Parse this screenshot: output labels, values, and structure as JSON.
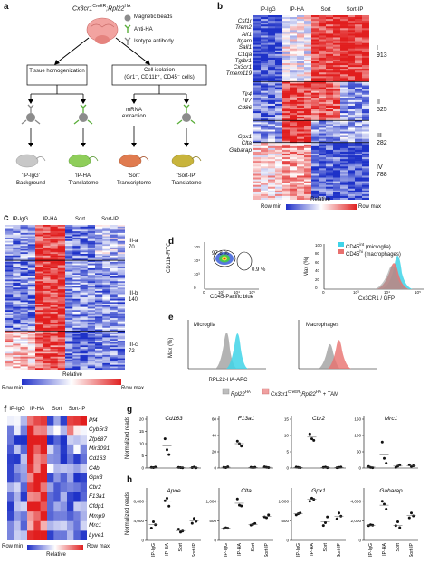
{
  "panel_labels": {
    "a": "a",
    "b": "b",
    "c": "c",
    "d": "d",
    "e": "e",
    "f": "f",
    "g": "g",
    "h": "h"
  },
  "panel_a": {
    "mouse_label": "Cx3cr1",
    "mouse_sup1": "CreER",
    "mouse_mid": ";Rpl22",
    "mouse_sup2": "HA",
    "legend": [
      "Magnetic beads",
      "Anti-HA",
      "Isotype antibody"
    ],
    "box_left": "Tissue homogenization",
    "box_right_line1": "Cell isolation",
    "box_right_line2": "(Gr1⁻, CD11b⁺, CD45⁻ cells)",
    "mrna": "mRNA extraction",
    "outputs": [
      {
        "name": "'IP-IgG'",
        "desc": "Background"
      },
      {
        "name": "'IP-HA'",
        "desc": "Translatome"
      },
      {
        "name": "'Sort'",
        "desc": "Transcriptome"
      },
      {
        "name": "'Sort-IP'",
        "desc": "Translatome"
      }
    ],
    "colors": {
      "gray": "#b9b9b9",
      "green": "#8fce5a",
      "orange": "#e07b4f",
      "olive": "#c8b43c"
    }
  },
  "panel_b": {
    "columns": [
      "IP-IgG",
      "IP-HA",
      "Sort",
      "Sort-IP"
    ],
    "genes_I": [
      "Csf1r",
      "Trem2",
      "Aif1",
      "Itgam",
      "Sall1",
      "C1qa",
      "Tgfbr1",
      "Cx3cr1",
      "Tmem119"
    ],
    "genes_II": [
      "Tlr4",
      "Tlr7",
      "Cd86"
    ],
    "genes_III": [
      "Gpx1",
      "Clta",
      "Gabarap"
    ],
    "clusters": [
      {
        "id": "I",
        "count": "913"
      },
      {
        "id": "II",
        "count": "525"
      },
      {
        "id": "III",
        "count": "282"
      },
      {
        "id": "IV",
        "count": "788"
      }
    ],
    "scale_left": "Row min",
    "scale_mid": "Relative",
    "scale_right": "Row max"
  },
  "panel_c": {
    "columns": [
      "IP-IgG",
      "IP-HA",
      "Sort",
      "Sort-IP"
    ],
    "clusters": [
      {
        "id": "III-a",
        "count": "70"
      },
      {
        "id": "III-b",
        "count": "140"
      },
      {
        "id": "III-c",
        "count": "72"
      }
    ],
    "scale_left": "Row min",
    "scale_mid": "Relative",
    "scale_right": "Row max"
  },
  "panel_d": {
    "scatter_ylabel": "CD11b-FITC",
    "scatter_xlabel": "CD45-Pacific blue",
    "gate1": "97.8 %",
    "gate2": "0.9 %",
    "hist_ylabel": "Max (%)",
    "hist_xlabel": "Cx3CR1 / GFP",
    "legend_1": "CD45",
    "legend_1_sup": "int",
    "legend_1_tail": " (microglia)",
    "legend_2": "CD45",
    "legend_2_sup": "hi",
    "legend_2_tail": " (macrophages)",
    "ticks": [
      "10²",
      "10³",
      "10⁴",
      "10⁵"
    ],
    "yticks": [
      "0",
      "10³",
      "10⁴",
      "10⁵"
    ],
    "pct_ticks": [
      "0",
      "20",
      "40",
      "60",
      "80",
      "100"
    ],
    "colors": {
      "cyan": "#3fd3e8",
      "red": "#e8706e",
      "gray": "#9a9a9a"
    }
  },
  "panel_e": {
    "left_title": "Microglia",
    "right_title": "Macrophages",
    "ylabel": "Max (%)",
    "xlabel": "RPL22-HA-APC",
    "legend_gray": "Rpl22",
    "legend_gray_sup": "HA",
    "legend_red_a": "Cx3cr1",
    "legend_red_sup1": "CreER",
    "legend_red_b": ";Rpl22",
    "legend_red_sup2": "HA",
    "legend_red_c": " + TAM"
  },
  "panel_f": {
    "columns": [
      "IP-IgG",
      "IP-HA",
      "Sort",
      "Sort-IP"
    ],
    "genes": [
      "Pf4",
      "Cyb5r3",
      "Zfp687",
      "Mir3091",
      "Cd163",
      "C4b",
      "Gpx3",
      "Cbr2",
      "F13a1",
      "Cfdp1",
      "Mmp9",
      "Mrc1",
      "Lyve1"
    ],
    "scale_left": "Row min",
    "scale_mid": "Relative",
    "scale_right": "Row max"
  },
  "panel_g": {
    "ylabel": "Normalized reads",
    "charts": [
      {
        "gene": "Cd163",
        "yticks": [
          "0",
          "5",
          "10",
          "15",
          "20"
        ]
      },
      {
        "gene": "F13a1",
        "yticks": [
          "0",
          "20",
          "40",
          "60"
        ]
      },
      {
        "gene": "Cbr2",
        "yticks": [
          "0",
          "5",
          "10",
          "15"
        ]
      },
      {
        "gene": "Mrc1",
        "yticks": [
          "0",
          "50",
          "100",
          "150"
        ]
      }
    ]
  },
  "panel_h": {
    "ylabel": "Normalized reads",
    "xcats": [
      "IP-IgG",
      "IP-HA",
      "Sort",
      "Sort-IP"
    ],
    "charts": [
      {
        "gene": "Apoe",
        "yticks": [
          "0",
          "4,000",
          "8,000"
        ]
      },
      {
        "gene": "Clta",
        "yticks": [
          "0",
          "500",
          "1,000"
        ]
      },
      {
        "gene": "Gpx1",
        "yticks": [
          "0",
          "500",
          "1,000"
        ]
      },
      {
        "gene": "Gabarap",
        "yticks": [
          "0",
          "2,000",
          "4,000"
        ]
      }
    ]
  },
  "chart_data": [
    {
      "type": "scatter",
      "panel": "g",
      "gene": "Cd163",
      "categories": [
        "IP-IgG",
        "IP-HA",
        "Sort",
        "Sort-IP"
      ],
      "ylim": [
        0,
        20
      ],
      "points": [
        [
          0.3,
          0.2,
          0.4
        ],
        [
          12,
          7.5,
          5.5
        ],
        [
          0.3,
          0.2,
          0.1
        ],
        [
          0.2,
          0.4,
          0.1
        ]
      ],
      "means": [
        0.3,
        9,
        0.2,
        0.2
      ]
    },
    {
      "type": "scatter",
      "panel": "g",
      "gene": "F13a1",
      "categories": [
        "IP-IgG",
        "IP-HA",
        "Sort",
        "Sort-IP"
      ],
      "ylim": [
        0,
        60
      ],
      "points": [
        [
          1,
          0.5,
          1.5
        ],
        [
          33,
          30,
          27
        ],
        [
          1,
          0.5,
          1
        ],
        [
          1.5,
          1,
          0.5
        ]
      ],
      "means": [
        1,
        30,
        0.8,
        1
      ]
    },
    {
      "type": "scatter",
      "panel": "g",
      "gene": "Cbr2",
      "categories": [
        "IP-IgG",
        "IP-HA",
        "Sort",
        "Sort-IP"
      ],
      "ylim": [
        0,
        15
      ],
      "points": [
        [
          0.3,
          0.2,
          0.1
        ],
        [
          10.5,
          9,
          8.5
        ],
        [
          0.2,
          0.3,
          0.1
        ],
        [
          0.1,
          0.2,
          0.3
        ]
      ],
      "means": [
        0.2,
        9.5,
        0.2,
        0.2
      ]
    },
    {
      "type": "scatter",
      "panel": "g",
      "gene": "Mrc1",
      "categories": [
        "IP-IgG",
        "IP-HA",
        "Sort",
        "Sort-IP"
      ],
      "ylim": [
        0,
        150
      ],
      "points": [
        [
          5,
          2,
          1
        ],
        [
          80,
          30,
          15
        ],
        [
          2,
          6,
          10
        ],
        [
          10,
          5,
          7
        ]
      ],
      "means": [
        3,
        40,
        6,
        7
      ]
    },
    {
      "type": "scatter",
      "panel": "h",
      "gene": "Apoe",
      "categories": [
        "IP-IgG",
        "IP-HA",
        "Sort",
        "Sort-IP"
      ],
      "ylim": [
        0,
        10000
      ],
      "points": [
        [
          2500,
          3800,
          3200
        ],
        [
          8100,
          8600,
          7000
        ],
        [
          2300,
          1700,
          1900
        ],
        [
          3500,
          4500,
          3900
        ]
      ],
      "means": [
        3200,
        8000,
        2000,
        4000
      ]
    },
    {
      "type": "scatter",
      "panel": "h",
      "gene": "Clta",
      "categories": [
        "IP-IgG",
        "IP-HA",
        "Sort",
        "Sort-IP"
      ],
      "ylim": [
        0,
        1250
      ],
      "points": [
        [
          300,
          320,
          310
        ],
        [
          1060,
          900,
          880
        ],
        [
          390,
          410,
          430
        ],
        [
          600,
          580,
          650
        ]
      ],
      "means": [
        310,
        950,
        410,
        610
      ]
    },
    {
      "type": "scatter",
      "panel": "h",
      "gene": "Gpx1",
      "categories": [
        "IP-IgG",
        "IP-HA",
        "Sort",
        "Sort-IP"
      ],
      "ylim": [
        0,
        1250
      ],
      "points": [
        [
          650,
          680,
          700
        ],
        [
          1000,
          1080,
          1050
        ],
        [
          380,
          450,
          600
        ],
        [
          550,
          700,
          620
        ]
      ],
      "means": [
        680,
        1050,
        480,
        620
      ]
    },
    {
      "type": "scatter",
      "panel": "h",
      "gene": "Gabarap",
      "categories": [
        "IP-IgG",
        "IP-HA",
        "Sort",
        "Sort-IP"
      ],
      "ylim": [
        0,
        5000
      ],
      "points": [
        [
          1500,
          1600,
          1550
        ],
        [
          4000,
          3700,
          3200
        ],
        [
          1500,
          1900,
          1300
        ],
        [
          2300,
          2800,
          2500
        ]
      ],
      "means": [
        1550,
        3600,
        1550,
        2550
      ]
    }
  ]
}
